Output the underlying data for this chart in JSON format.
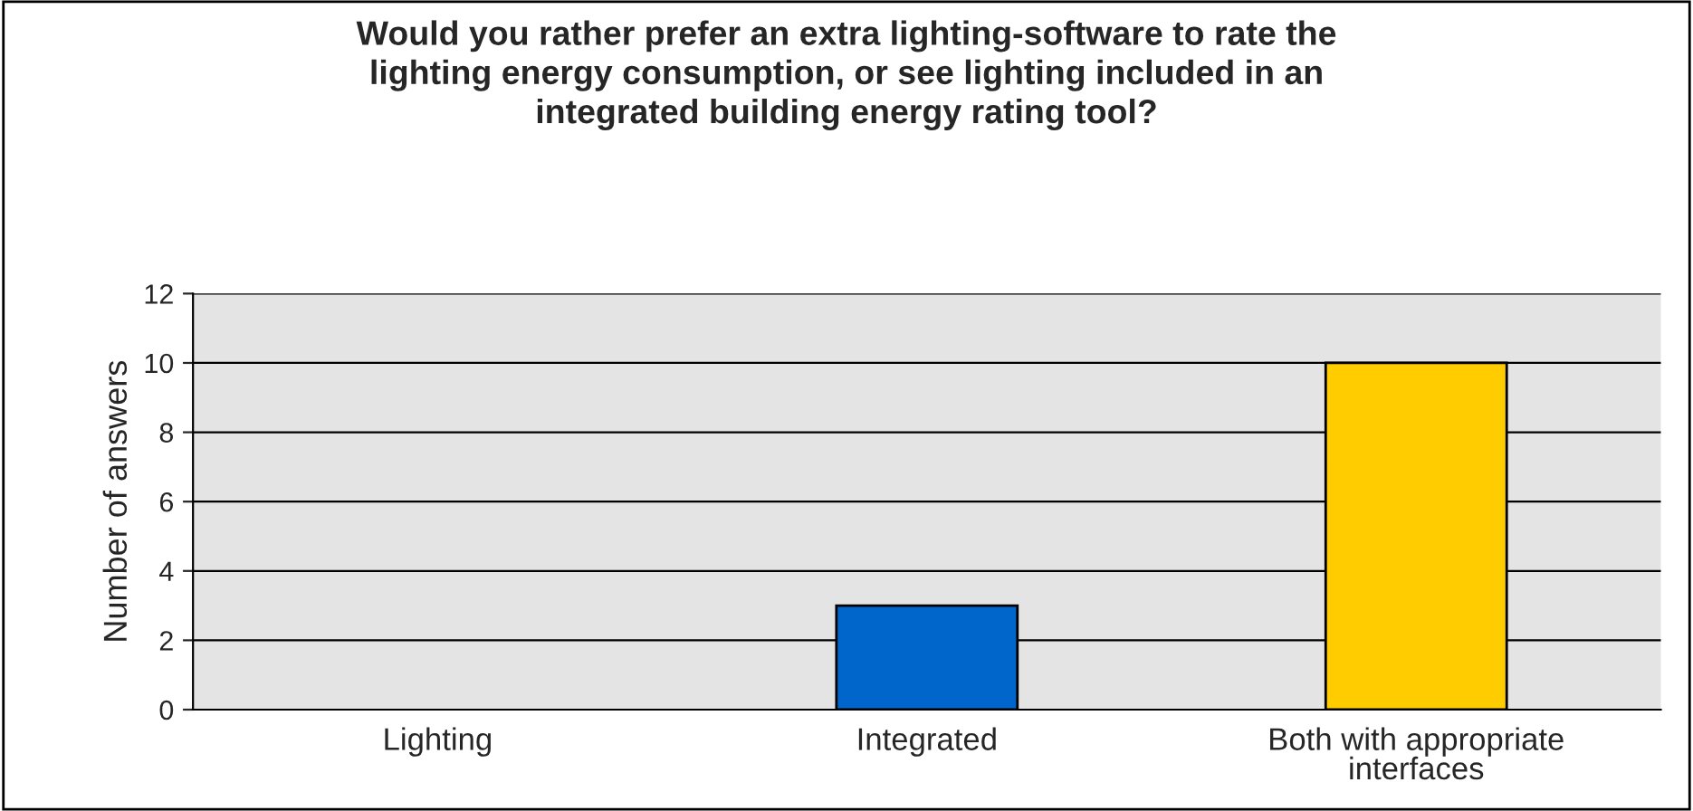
{
  "chart_data": {
    "type": "bar",
    "title": "Would you rather prefer an extra lighting-software to rate the lighting energy consumption, or see lighting included in an integrated building energy rating tool?",
    "ylabel": "Number of answers",
    "categories": [
      "Lighting",
      "Integrated",
      "Both with appropriate interfaces"
    ],
    "values": [
      0,
      3,
      10
    ],
    "colors": [
      "#0066cc",
      "#0066cc",
      "#ffcc00"
    ],
    "ylim": [
      0,
      12
    ],
    "yticks": [
      0,
      2,
      4,
      6,
      8,
      10,
      12
    ],
    "grid": "y"
  }
}
